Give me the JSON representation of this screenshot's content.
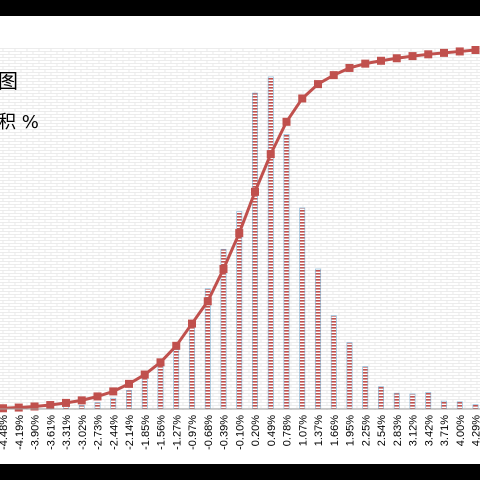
{
  "chart_data": {
    "type": "bar",
    "title_fragment": "图",
    "legend_fragment": "积 %",
    "categories": [
      "-4.48%",
      "-4.19%",
      "-3.90%",
      "-3.61%",
      "-3.31%",
      "-3.02%",
      "-2.73%",
      "-2.44%",
      "-2.14%",
      "-1.85%",
      "-1.56%",
      "-1.27%",
      "-0.97%",
      "-0.68%",
      "-0.39%",
      "-0.10%",
      "0.20%",
      "0.49%",
      "0.78%",
      "1.07%",
      "1.37%",
      "1.66%",
      "1.95%",
      "2.25%",
      "2.54%",
      "2.83%",
      "3.12%",
      "3.42%",
      "3.71%",
      "4.00%",
      "4.29%"
    ],
    "series": [
      {
        "type": "bar",
        "values": [
          0.2,
          0.3,
          0.4,
          0.6,
          0.8,
          1.0,
          1.8,
          3.0,
          5.2,
          9.0,
          12.5,
          16.5,
          24.0,
          33.5,
          44.5,
          55.0,
          88.0,
          92.5,
          76.5,
          56.0,
          39.0,
          26.0,
          18.5,
          11.8,
          6.2,
          4.4,
          4.2,
          4.6,
          2.2,
          2.0,
          1.2
        ]
      },
      {
        "type": "line",
        "values": [
          0.2,
          0.4,
          0.7,
          1.1,
          1.7,
          2.4,
          3.5,
          4.9,
          7.0,
          9.6,
          13.0,
          17.6,
          23.8,
          30.0,
          39.0,
          49.0,
          60.5,
          71.0,
          80.0,
          86.5,
          90.5,
          93.0,
          95.0,
          96.2,
          97.0,
          97.7,
          98.3,
          98.8,
          99.2,
          99.6,
          100
        ]
      }
    ],
    "colors": {
      "bar": "#c0504d",
      "line": "#c0504d",
      "marker": "#c0504d",
      "bar_top": "#7fb3d5"
    },
    "ylim": [
      0,
      100
    ]
  }
}
